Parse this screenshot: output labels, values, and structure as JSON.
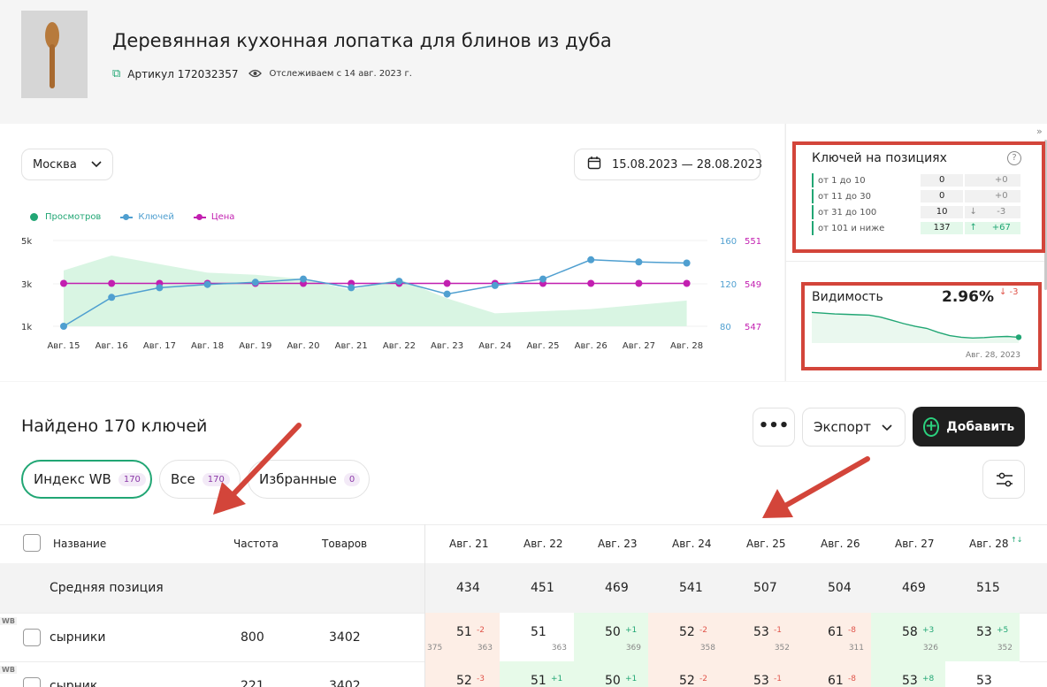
{
  "product": {
    "title": "Деревянная кухонная лопатка для блинов из дуба",
    "article": "Артикул 172032357",
    "tracking": "Отслеживаем с 14 авг. 2023 г."
  },
  "filters": {
    "city": "Москва",
    "date_range": "15.08.2023 — 28.08.2023"
  },
  "legend": {
    "views": "Просмотров",
    "keys": "Ключей",
    "price": "Цена"
  },
  "colors": {
    "views": "#21a674",
    "keys": "#4f9fd0",
    "price": "#c21fb0",
    "accent": "#21a674",
    "annotation": "#d3453a"
  },
  "chart_data": {
    "type": "line",
    "x": [
      "Авг. 15",
      "Авг. 16",
      "Авг. 17",
      "Авг. 18",
      "Авг. 19",
      "Авг. 20",
      "Авг. 21",
      "Авг. 22",
      "Авг. 23",
      "Авг. 24",
      "Авг. 25",
      "Авг. 26",
      "Авг. 27",
      "Авг. 28"
    ],
    "left_axis": {
      "ticks": [
        "5k",
        "3k",
        "1k"
      ],
      "ylim": [
        1000,
        5000
      ]
    },
    "right_axis_keys": {
      "ticks": [
        "160",
        "120",
        "80"
      ],
      "ylim": [
        80,
        160
      ]
    },
    "right_axis_price": {
      "ticks": [
        "551",
        "549",
        "547"
      ],
      "ylim": [
        547,
        551
      ]
    },
    "series": [
      {
        "name": "Просмотров",
        "type": "area",
        "values": [
          3600,
          4300,
          3900,
          3500,
          3400,
          3200,
          2700,
          3200,
          2300,
          1600,
          1700,
          1800,
          2000,
          2200
        ]
      },
      {
        "name": "Ключей",
        "type": "line",
        "values": [
          80,
          107,
          116,
          119,
          121,
          124,
          116,
          122,
          110,
          118,
          124,
          142,
          140,
          139
        ]
      },
      {
        "name": "Цена",
        "type": "line",
        "values": [
          549,
          549,
          549,
          549,
          549,
          549,
          549,
          549,
          549,
          549,
          549,
          549,
          549,
          549
        ]
      }
    ]
  },
  "positions_widget": {
    "title": "Ключей на позициях",
    "help": "?",
    "rows": [
      {
        "label": "от 1 до 10",
        "value": "0",
        "arrow": "",
        "delta": "+0"
      },
      {
        "label": "от 11 до 30",
        "value": "0",
        "arrow": "",
        "delta": "+0"
      },
      {
        "label": "от 31 до 100",
        "value": "10",
        "arrow": "↓",
        "delta": "-3"
      },
      {
        "label": "от 101 и ниже",
        "value": "137",
        "arrow": "↑",
        "delta": "+67"
      }
    ]
  },
  "visibility_widget": {
    "title": "Видимость",
    "value": "2.96%",
    "delta": "↓ -3",
    "date": "Авг. 28, 2023",
    "trend": [
      3.9,
      3.88,
      3.86,
      3.85,
      3.84,
      3.83,
      3.78,
      3.7,
      3.62,
      3.55,
      3.5,
      3.4,
      3.32,
      3.28,
      3.26,
      3.27,
      3.29,
      3.3,
      3.28
    ]
  },
  "keys_section": {
    "found": "Найдено 170 ключей",
    "more": "•••",
    "export": "Экспорт",
    "add": "Добавить",
    "tabs": [
      {
        "label": "Индекс WB",
        "count": "170"
      },
      {
        "label": "Все",
        "count": "170"
      },
      {
        "label": "Избранные",
        "count": "0"
      }
    ]
  },
  "table": {
    "headers": {
      "name": "Название",
      "freq": "Частота",
      "goods": "Товаров"
    },
    "dates": [
      "Авг. 21",
      "Авг. 22",
      "Авг. 23",
      "Авг. 24",
      "Авг. 25",
      "Авг. 26",
      "Авг. 27",
      "Авг. 28"
    ],
    "sort_icon": "↑↓",
    "avg_label": "Средняя позиция",
    "avg_values": [
      "434",
      "451",
      "469",
      "541",
      "507",
      "504",
      "469",
      "515"
    ],
    "rows": [
      {
        "tag": "WB",
        "keyword": "сырники",
        "freq": "800",
        "goods": "3402",
        "cells": [
          {
            "pos": "51",
            "delta": "-2",
            "tone": "red",
            "sub": "363",
            "sub_left": "375"
          },
          {
            "pos": "51",
            "delta": "",
            "tone": "none",
            "sub": "363",
            "sub_left": ""
          },
          {
            "pos": "50",
            "delta": "+1",
            "tone": "green",
            "sub": "369",
            "sub_left": ""
          },
          {
            "pos": "52",
            "delta": "-2",
            "tone": "red",
            "sub": "358",
            "sub_left": ""
          },
          {
            "pos": "53",
            "delta": "-1",
            "tone": "red",
            "sub": "352",
            "sub_left": ""
          },
          {
            "pos": "61",
            "delta": "-8",
            "tone": "red",
            "sub": "311",
            "sub_left": ""
          },
          {
            "pos": "58",
            "delta": "+3",
            "tone": "green",
            "sub": "326",
            "sub_left": ""
          },
          {
            "pos": "53",
            "delta": "+5",
            "tone": "green",
            "sub": "352",
            "sub_left": ""
          }
        ]
      },
      {
        "tag": "WB",
        "keyword": "сырник",
        "freq": "221",
        "goods": "3402",
        "cells": [
          {
            "pos": "52",
            "delta": "-3",
            "tone": "red",
            "sub": "",
            "sub_left": ""
          },
          {
            "pos": "51",
            "delta": "+1",
            "tone": "green",
            "sub": "",
            "sub_left": ""
          },
          {
            "pos": "50",
            "delta": "+1",
            "tone": "green",
            "sub": "",
            "sub_left": ""
          },
          {
            "pos": "52",
            "delta": "-2",
            "tone": "red",
            "sub": "",
            "sub_left": ""
          },
          {
            "pos": "53",
            "delta": "-1",
            "tone": "red",
            "sub": "",
            "sub_left": ""
          },
          {
            "pos": "61",
            "delta": "-8",
            "tone": "red",
            "sub": "",
            "sub_left": ""
          },
          {
            "pos": "53",
            "delta": "+8",
            "tone": "green",
            "sub": "",
            "sub_left": ""
          },
          {
            "pos": "53",
            "delta": "",
            "tone": "none",
            "sub": "",
            "sub_left": ""
          }
        ]
      }
    ]
  }
}
